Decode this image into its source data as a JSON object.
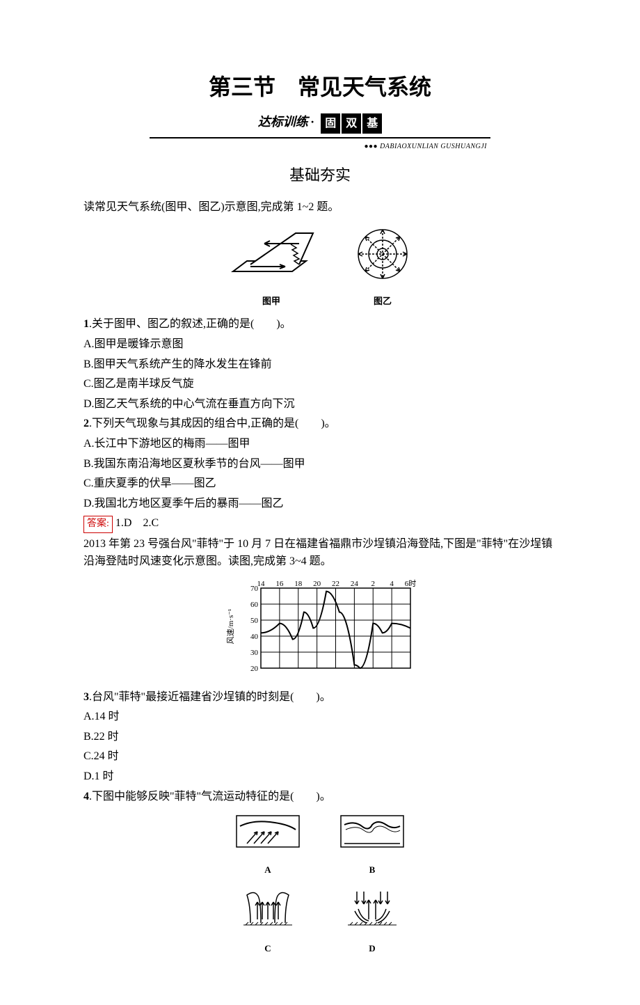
{
  "title": "第三节　常见天气系统",
  "banner": {
    "prefix": "达标训练",
    "dot": "·",
    "boxes": [
      "固",
      "双",
      "基"
    ]
  },
  "pinyin": "●●● DABIAOXUNLIAN GUSHUANGJI",
  "section_heading": "基础夯实",
  "intro1": "读常见天气系统(图甲、图乙)示意图,完成第 1~2 题。",
  "fig_jiabao": "图甲",
  "fig_yi": "图乙",
  "q1": {
    "num": "1",
    "text": ".关于图甲、图乙的叙述,正确的是(　　)。",
    "A": "A.图甲是暖锋示意图",
    "B": "B.图甲天气系统产生的降水发生在锋前",
    "C": "C.图乙是南半球反气旋",
    "D": "D.图乙天气系统的中心气流在垂直方向下沉"
  },
  "q2": {
    "num": "2",
    "text": ".下列天气现象与其成因的组合中,正确的是(　　)。",
    "A": "A.长江中下游地区的梅雨——图甲",
    "B": "B.我国东南沿海地区夏秋季节的台风——图甲",
    "C": "C.重庆夏季的伏旱——图乙",
    "D": "D.我国北方地区夏季午后的暴雨——图乙"
  },
  "answer12_label": "答案:",
  "answer12": "1.D　2.C",
  "intro2": "2013 年第 23 号强台风\"菲特\"于 10 月 7 日在福建省福鼎市沙埕镇沿海登陆,下图是\"菲特\"在沙埕镇沿海登陆时风速变化示意图。读图,完成第 3~4 题。",
  "chart": {
    "type": "line",
    "x_ticks": [
      "14",
      "16",
      "18",
      "20",
      "22",
      "24",
      "2",
      "4",
      "6时"
    ],
    "y_ticks": [
      20,
      30,
      40,
      50,
      60,
      70
    ],
    "ylabel": "风速/m·s⁻¹",
    "data_points": [
      {
        "x": 0,
        "y": 42
      },
      {
        "x": 1,
        "y": 48
      },
      {
        "x": 1.7,
        "y": 38
      },
      {
        "x": 2.3,
        "y": 55
      },
      {
        "x": 2.8,
        "y": 45
      },
      {
        "x": 3.5,
        "y": 68
      },
      {
        "x": 4.2,
        "y": 55
      },
      {
        "x": 5,
        "y": 22
      },
      {
        "x": 5.3,
        "y": 20
      },
      {
        "x": 6,
        "y": 48
      },
      {
        "x": 6.5,
        "y": 42
      },
      {
        "x": 7,
        "y": 48
      },
      {
        "x": 8,
        "y": 45
      }
    ],
    "grid_color": "#000000",
    "line_color": "#000000",
    "background": "#ffffff"
  },
  "q3": {
    "num": "3",
    "text": ".台风\"菲特\"最接近福建省沙埕镇的时刻是(　　)。",
    "A": "A.14 时",
    "B": "B.22 时",
    "C": "C.24 时",
    "D": "D.1 时"
  },
  "q4": {
    "num": "4",
    "text": ".下图中能够反映\"菲特\"气流运动特征的是(　　)。"
  },
  "choice_labels": {
    "A": "A",
    "B": "B",
    "C": "C",
    "D": "D"
  }
}
